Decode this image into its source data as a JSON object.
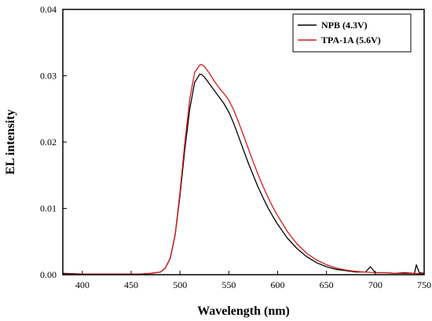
{
  "chart_data": {
    "type": "line",
    "xlabel": "Wavelength (nm)",
    "ylabel": "EL intensity",
    "xlim": [
      380,
      750
    ],
    "ylim": [
      0,
      0.04
    ],
    "x_ticks": [
      400,
      450,
      500,
      550,
      600,
      650,
      700,
      750
    ],
    "x_tick_labels": [
      "400",
      "450",
      "500",
      "550",
      "600",
      "650",
      "700",
      "750"
    ],
    "y_ticks": [
      0,
      0.01,
      0.02,
      0.03,
      0.04
    ],
    "y_tick_labels": [
      "0.00",
      "0.01",
      "0.02",
      "0.03",
      "0.04"
    ],
    "grid": false,
    "legend_position": "top-right",
    "series": [
      {
        "name": "NPB (4.3V)",
        "color": "#000000",
        "x": [
          380,
          400,
          420,
          440,
          460,
          470,
          480,
          485,
          490,
          495,
          500,
          505,
          510,
          515,
          520,
          522,
          525,
          530,
          535,
          540,
          545,
          550,
          555,
          560,
          565,
          570,
          575,
          580,
          585,
          590,
          595,
          600,
          610,
          620,
          630,
          640,
          650,
          660,
          670,
          680,
          690,
          695,
          700,
          710,
          720,
          730,
          740,
          742,
          745,
          750
        ],
        "y": [
          0.0002,
          0.0001,
          0.0001,
          0.0001,
          0.0001,
          0.0002,
          0.0004,
          0.001,
          0.0025,
          0.006,
          0.012,
          0.019,
          0.025,
          0.029,
          0.0302,
          0.0302,
          0.0298,
          0.0288,
          0.0278,
          0.0268,
          0.0258,
          0.0245,
          0.0228,
          0.0208,
          0.0188,
          0.0168,
          0.015,
          0.0132,
          0.0116,
          0.0101,
          0.0088,
          0.0076,
          0.0055,
          0.0039,
          0.0027,
          0.0018,
          0.0012,
          0.0008,
          0.0006,
          0.0004,
          0.0004,
          0.0012,
          0.0003,
          0.0003,
          0.0002,
          0.0003,
          0.0002,
          0.0015,
          0.0003,
          0.0002
        ]
      },
      {
        "name": "TPA-1A (5.6V)",
        "color": "#d21a1a",
        "x": [
          380,
          400,
          420,
          440,
          460,
          470,
          480,
          485,
          490,
          495,
          500,
          505,
          510,
          515,
          520,
          522,
          525,
          530,
          535,
          540,
          545,
          550,
          555,
          560,
          565,
          570,
          575,
          580,
          585,
          590,
          595,
          600,
          610,
          620,
          630,
          640,
          650,
          660,
          670,
          680,
          690,
          700,
          710,
          720,
          730,
          740,
          750
        ],
        "y": [
          0.0001,
          0.0001,
          0.0001,
          0.0001,
          0.0001,
          0.0002,
          0.0004,
          0.001,
          0.0025,
          0.006,
          0.0125,
          0.02,
          0.0265,
          0.0305,
          0.0316,
          0.0317,
          0.0314,
          0.0304,
          0.0292,
          0.0282,
          0.0273,
          0.0263,
          0.0248,
          0.023,
          0.021,
          0.019,
          0.017,
          0.0151,
          0.0133,
          0.0117,
          0.0102,
          0.0089,
          0.0065,
          0.0046,
          0.0032,
          0.0022,
          0.0015,
          0.001,
          0.0007,
          0.0005,
          0.0004,
          0.0003,
          0.0003,
          0.0002,
          0.0002,
          0.0002,
          0.0001
        ]
      }
    ]
  }
}
